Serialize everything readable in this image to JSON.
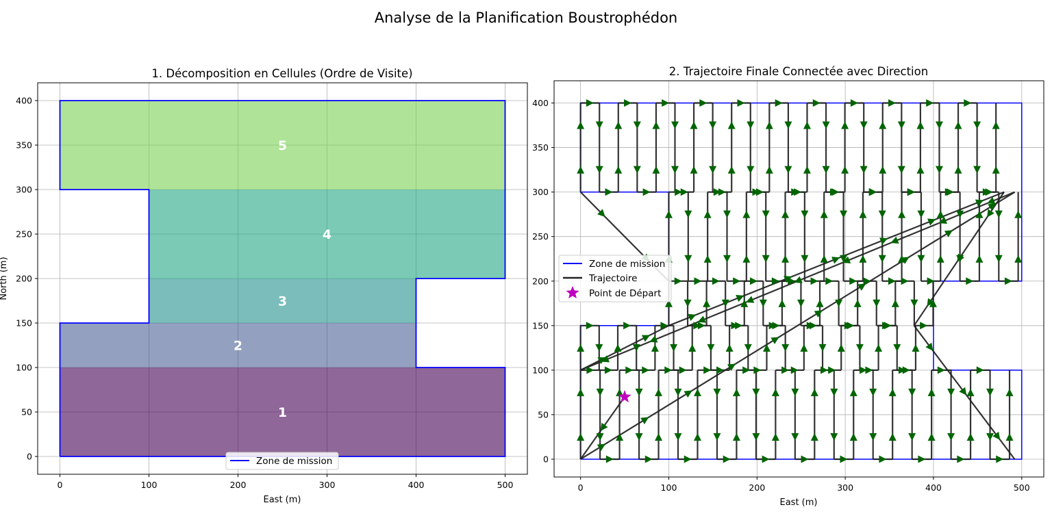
{
  "figure": {
    "title": "Analyse de la Planification Boustrophédon"
  },
  "colors": {
    "boundary": "#0000ff",
    "trajectory": "#222222",
    "arrow": "#006400",
    "start": "#bf00bf",
    "grid": "#b0b0b0",
    "cells": [
      "#440154",
      "#3b528b",
      "#21918c",
      "#21a685",
      "#7ad151"
    ]
  },
  "chart_data": [
    {
      "type": "area",
      "title": "1. Décomposition en Cellules (Ordre de Visite)",
      "xlabel": "East (m)",
      "ylabel": "North (m)",
      "xlim": [
        -25,
        525
      ],
      "ylim": [
        -20,
        420
      ],
      "xticks": [
        0,
        100,
        200,
        300,
        400,
        500
      ],
      "yticks": [
        0,
        50,
        100,
        150,
        200,
        250,
        300,
        350,
        400
      ],
      "grid": true,
      "legend": {
        "placement": "bottom-center",
        "entries": [
          "Zone de mission"
        ]
      },
      "boundary": [
        [
          0,
          0
        ],
        [
          500,
          0
        ],
        [
          500,
          100
        ],
        [
          400,
          100
        ],
        [
          400,
          200
        ],
        [
          500,
          200
        ],
        [
          500,
          400
        ],
        [
          0,
          400
        ],
        [
          0,
          300
        ],
        [
          100,
          300
        ],
        [
          100,
          150
        ],
        [
          0,
          150
        ],
        [
          0,
          0
        ]
      ],
      "cells": [
        {
          "label": "1",
          "x": [
            0,
            500
          ],
          "y": [
            0,
            100
          ],
          "opacity": 0.6
        },
        {
          "label": "2",
          "x": [
            0,
            400
          ],
          "y": [
            100,
            150
          ],
          "opacity": 0.55
        },
        {
          "label": "3",
          "x": [
            100,
            400
          ],
          "y": [
            150,
            200
          ],
          "opacity": 0.6
        },
        {
          "label": "4",
          "x": [
            100,
            500
          ],
          "y": [
            200,
            300
          ],
          "opacity": 0.6
        },
        {
          "label": "5",
          "x": [
            0,
            500
          ],
          "y": [
            300,
            400
          ],
          "opacity": 0.6
        }
      ]
    },
    {
      "type": "line",
      "title": "2. Trajectoire Finale Connectée avec Direction",
      "xlabel": "East (m)",
      "ylabel": "",
      "xlim": [
        -30,
        525
      ],
      "ylim": [
        -20,
        425
      ],
      "xticks": [
        0,
        100,
        200,
        300,
        400,
        500
      ],
      "yticks": [
        0,
        50,
        100,
        150,
        200,
        250,
        300,
        350,
        400
      ],
      "grid": true,
      "legend": {
        "placement": "center-left",
        "entries": [
          "Zone de mission",
          "Trajectoire",
          "Point de Départ"
        ]
      },
      "start_point": [
        50,
        70
      ],
      "sweeps": [
        {
          "x0": 0,
          "x1": 500,
          "step": 22.1,
          "y": [
            0,
            100
          ]
        },
        {
          "x0": 0,
          "x1": 400,
          "step": 21.1,
          "y": [
            100,
            150
          ]
        },
        {
          "x0": 100,
          "x1": 400,
          "step": 21.4,
          "y": [
            150,
            200
          ]
        },
        {
          "x0": 100,
          "x1": 500,
          "step": 22.0,
          "y": [
            200,
            300
          ]
        },
        {
          "x0": 0,
          "x1": 492,
          "step": 21.4,
          "y": [
            300,
            400
          ]
        }
      ],
      "transitions": [
        [
          [
            50,
            70
          ],
          [
            0,
            0
          ]
        ],
        [
          [
            0,
            0
          ],
          [
            492,
            300
          ]
        ],
        [
          [
            492,
            300
          ],
          [
            0,
            100
          ]
        ],
        [
          [
            0,
            100
          ],
          [
            100,
            150
          ]
        ],
        [
          [
            100,
            150
          ],
          [
            480,
            300
          ]
        ],
        [
          [
            480,
            300
          ],
          [
            378,
            150
          ]
        ],
        [
          [
            378,
            150
          ],
          [
            492,
            0
          ]
        ],
        [
          [
            0,
            300
          ],
          [
            100,
            200
          ]
        ]
      ]
    }
  ]
}
